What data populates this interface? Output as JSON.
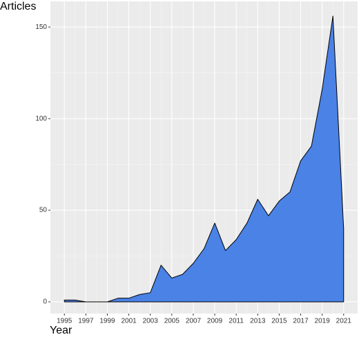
{
  "chart_data": {
    "type": "area",
    "y_label": "Articles",
    "x_label": "Year",
    "x": [
      1995,
      1996,
      1997,
      1998,
      1999,
      2000,
      2001,
      2002,
      2003,
      2004,
      2005,
      2006,
      2007,
      2008,
      2009,
      2010,
      2011,
      2012,
      2013,
      2014,
      2015,
      2016,
      2017,
      2018,
      2019,
      2020,
      2021
    ],
    "values": [
      1,
      1,
      0,
      0,
      0,
      2,
      2,
      4,
      5,
      20,
      13,
      15,
      21,
      29,
      43,
      28,
      34,
      43,
      56,
      47,
      55,
      60,
      77,
      85,
      116,
      156,
      40
    ],
    "color": "#4a82e6",
    "xlim": [
      1993.7,
      2022.3
    ],
    "xticks": [
      1995,
      1997,
      1999,
      2001,
      2003,
      2005,
      2007,
      2009,
      2011,
      2013,
      2015,
      2017,
      2019,
      2021
    ],
    "ylim": [
      -6.4,
      164
    ],
    "yticks": [
      0,
      50,
      100,
      150
    ],
    "grid": true
  }
}
